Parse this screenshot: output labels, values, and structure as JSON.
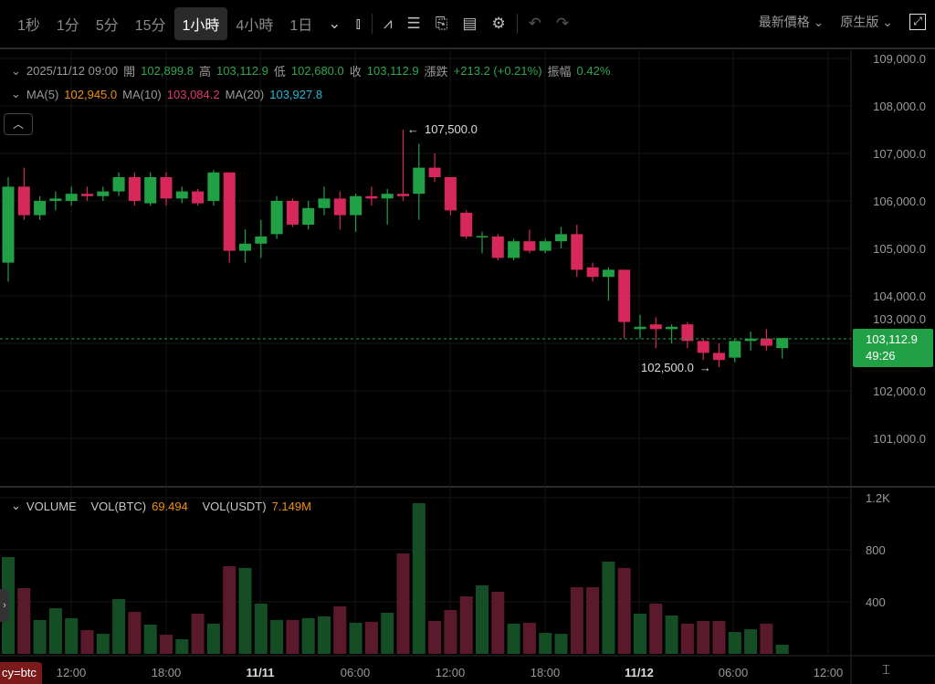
{
  "toolbar": {
    "intervals": [
      "1秒",
      "1分",
      "5分",
      "15分",
      "1小時",
      "4小時",
      "1日"
    ],
    "active_interval": "1小時",
    "price_type": "最新價格",
    "view_mode": "原生版"
  },
  "ohlc_legend": {
    "datetime": "2025/11/12 09:00",
    "open_label": "開",
    "open": "102,899.8",
    "high_label": "高",
    "high": "103,112.9",
    "low_label": "低",
    "low": "102,680.0",
    "close_label": "收",
    "close": "103,112.9",
    "change_label": "漲跌",
    "change": "+213.2 (+0.21%)",
    "amplitude_label": "振幅",
    "amplitude": "0.42%"
  },
  "ma_legend": {
    "ma5_label": "MA(5)",
    "ma5": "102,945.0",
    "ma10_label": "MA(10)",
    "ma10": "103,084.2",
    "ma20_label": "MA(20)",
    "ma20": "103,927.8"
  },
  "volume_legend": {
    "label": "VOLUME",
    "btc_label": "VOL(BTC)",
    "btc": "69.494",
    "usdt_label": "VOL(USDT)",
    "usdt": "7.149M"
  },
  "current_price": {
    "price": "103,112.9",
    "countdown": "49:26"
  },
  "annotations": {
    "high": "107,500.0",
    "low": "102,500.0"
  },
  "tag": "cy=btc",
  "colors": {
    "up": "#22a046",
    "down": "#d6285a",
    "up_vol": "#154d25",
    "down_vol": "#5a1a2c",
    "ma5": "#f0900c",
    "ma10": "#e0386a",
    "ma20": "#1eb8d8"
  },
  "chart_data": {
    "type": "candlestick",
    "price_axis": [
      "109,000.0",
      "108,000.0",
      "107,000.0",
      "106,000.0",
      "105,000.0",
      "104,000.0",
      "103,000.0",
      "102,000.0",
      "101,000.0"
    ],
    "volume_axis": [
      "1.2K",
      "800",
      "400"
    ],
    "x_axis": [
      "12:00",
      "18:00",
      "11/11",
      "06:00",
      "12:00",
      "18:00",
      "11/12",
      "06:00",
      "12:00"
    ],
    "candles": [
      [
        104700,
        106500,
        104300,
        106300
      ],
      [
        106300,
        106700,
        105600,
        105700
      ],
      [
        105700,
        106100,
        105600,
        106000
      ],
      [
        106000,
        106200,
        105800,
        106050
      ],
      [
        106000,
        106300,
        105900,
        106150
      ],
      [
        106150,
        106300,
        106000,
        106100
      ],
      [
        106100,
        106300,
        106000,
        106200
      ],
      [
        106200,
        106600,
        106100,
        106500
      ],
      [
        106500,
        106600,
        105900,
        106000
      ],
      [
        105950,
        106600,
        105900,
        106500
      ],
      [
        106500,
        106600,
        105900,
        106050
      ],
      [
        106050,
        106300,
        105950,
        106200
      ],
      [
        106200,
        106250,
        105900,
        105950
      ],
      [
        106000,
        106650,
        105900,
        106600
      ],
      [
        106600,
        106600,
        104700,
        104950
      ],
      [
        104950,
        105400,
        104700,
        105100
      ],
      [
        105100,
        105600,
        104800,
        105250
      ],
      [
        105300,
        106100,
        105200,
        106000
      ],
      [
        106000,
        106050,
        105450,
        105500
      ],
      [
        105500,
        106000,
        105400,
        105850
      ],
      [
        105850,
        106300,
        105700,
        106050
      ],
      [
        106050,
        106200,
        105400,
        105700
      ],
      [
        105700,
        106150,
        105350,
        106100
      ],
      [
        106100,
        106300,
        105900,
        106050
      ],
      [
        106050,
        106250,
        105500,
        106150
      ],
      [
        106150,
        107500,
        106000,
        106100
      ],
      [
        106150,
        107200,
        105600,
        106700
      ],
      [
        106700,
        107000,
        106400,
        106500
      ],
      [
        106500,
        106500,
        105700,
        105800
      ],
      [
        105750,
        105800,
        105200,
        105250
      ],
      [
        105250,
        105350,
        104900,
        105260
      ],
      [
        105250,
        105300,
        104750,
        104800
      ],
      [
        104800,
        105200,
        104750,
        105150
      ],
      [
        105150,
        105400,
        104900,
        104950
      ],
      [
        104950,
        105200,
        104900,
        105150
      ],
      [
        105150,
        105450,
        105000,
        105300
      ],
      [
        105300,
        105500,
        104400,
        104550
      ],
      [
        104600,
        104700,
        104300,
        104400
      ],
      [
        104400,
        104600,
        103900,
        104550
      ],
      [
        104550,
        104550,
        103100,
        103450
      ],
      [
        103300,
        103600,
        103100,
        103350
      ],
      [
        103400,
        103550,
        102900,
        103300
      ],
      [
        103300,
        103400,
        103000,
        103350
      ],
      [
        103400,
        103450,
        102900,
        103050
      ],
      [
        103050,
        103100,
        102650,
        102800
      ],
      [
        102800,
        103000,
        102500,
        102650
      ],
      [
        102700,
        103100,
        102600,
        103050
      ],
      [
        103050,
        103250,
        102850,
        103100
      ],
      [
        103100,
        103300,
        102850,
        102950
      ],
      [
        102900,
        103113,
        102680,
        103113
      ]
    ],
    "volumes": [
      744,
      505,
      260,
      351,
      274,
      182,
      154,
      421,
      323,
      225,
      147,
      112,
      309,
      232,
      674,
      660,
      386,
      260,
      260,
      274,
      288,
      365,
      239,
      246,
      316,
      772,
      1158,
      253,
      337,
      442,
      526,
      477,
      232,
      239,
      161,
      154,
      512,
      512,
      709,
      660,
      309,
      386,
      295,
      232,
      253,
      253,
      168,
      189,
      232,
      70
    ]
  }
}
